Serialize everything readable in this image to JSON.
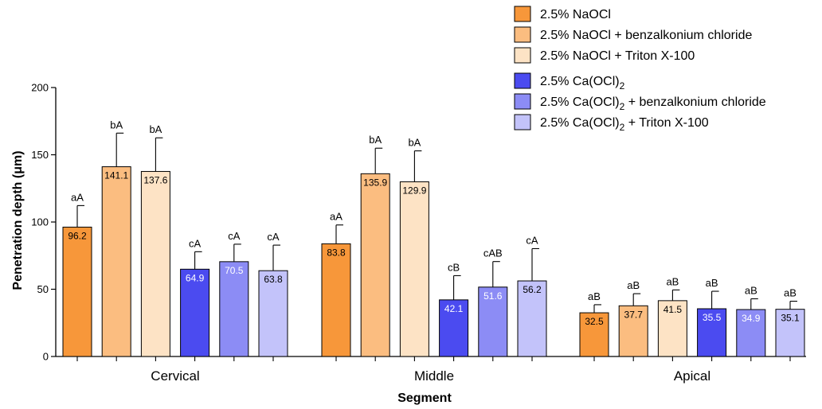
{
  "chart_data": {
    "type": "bar",
    "xlabel": "Segment",
    "ylabel": "Penetration depth (μm)",
    "ylim": [
      0,
      200
    ],
    "yticks": [
      0,
      50,
      100,
      150,
      200
    ],
    "categories": [
      "Cervical",
      "Middle",
      "Apical"
    ],
    "legend_position": "top-right",
    "series": [
      {
        "name": "2.5% NaOCl",
        "legend_text": "2.5% NaOCl",
        "color": "#F7973A",
        "value_text_color": "#000000",
        "values": [
          96.2,
          83.8,
          32.5
        ],
        "error": [
          16,
          14,
          6
        ],
        "letters": [
          "aA",
          "aA",
          "aB"
        ]
      },
      {
        "name": "2.5% NaOCl + benzalkonium chloride",
        "legend_text": "2.5% NaOCl + benzalkonium chloride",
        "color": "#FBBD80",
        "value_text_color": "#000000",
        "values": [
          141.1,
          135.9,
          37.7
        ],
        "error": [
          25,
          19,
          9
        ],
        "letters": [
          "bA",
          "bA",
          "aB"
        ]
      },
      {
        "name": "2.5% NaOCl + Triton X-100",
        "legend_text": "2.5% NaOCl + Triton X-100",
        "color": "#FDE3C5",
        "value_text_color": "#000000",
        "values": [
          137.6,
          129.9,
          41.5
        ],
        "error": [
          25,
          23,
          8
        ],
        "letters": [
          "bA",
          "bA",
          "aB"
        ]
      },
      {
        "name": "2.5% Ca(OCl)2",
        "legend_text": "2.5% Ca(OCl)",
        "legend_sub": "2",
        "legend_suffix": "",
        "color": "#4B4BF0",
        "value_text_color": "#FFFFFF",
        "values": [
          64.9,
          42.1,
          35.5
        ],
        "error": [
          13,
          18,
          13
        ],
        "letters": [
          "cA",
          "cB",
          "aB"
        ]
      },
      {
        "name": "2.5% Ca(OCl)2 + benzalkonium chloride",
        "legend_text": "2.5% Ca(OCl)",
        "legend_sub": "2",
        "legend_suffix": " + benzalkonium chloride",
        "color": "#8C8CF5",
        "value_text_color": "#FFFFFF",
        "values": [
          70.5,
          51.6,
          34.9
        ],
        "error": [
          13,
          19,
          8
        ],
        "letters": [
          "cA",
          "cAB",
          "aB"
        ]
      },
      {
        "name": "2.5% Ca(OCl)2 + Triton X-100",
        "legend_text": "2.5% Ca(OCl)",
        "legend_sub": "2",
        "legend_suffix": " + Triton X-100",
        "color": "#C3C3FA",
        "value_text_color": "#000000",
        "values": [
          63.8,
          56.2,
          35.1
        ],
        "error": [
          19,
          24,
          6
        ],
        "letters": [
          "cA",
          "cA",
          "aB"
        ]
      }
    ]
  }
}
